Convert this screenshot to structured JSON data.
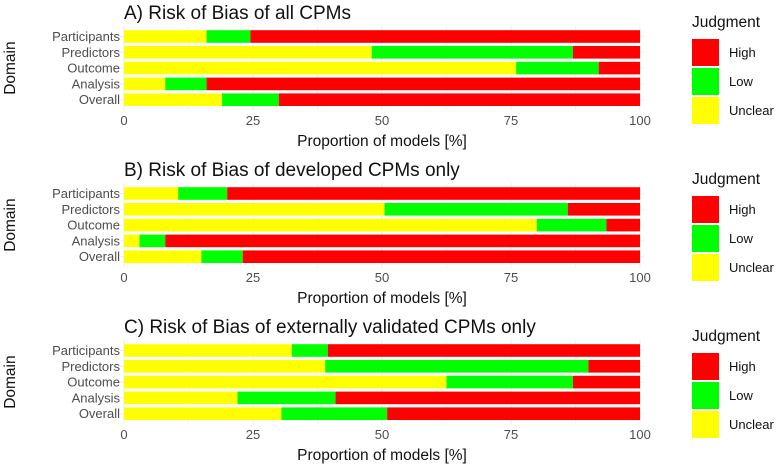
{
  "chart_data": [
    {
      "type": "bar",
      "orientation": "horizontal",
      "stacked": true,
      "title": "A) Risk of Bias of all CPMs",
      "xlabel": "Proportion of models [%]",
      "ylabel": "Domain",
      "xlim": [
        0,
        100
      ],
      "xticks": [
        "0",
        "25",
        "50",
        "75",
        "100"
      ],
      "categories": [
        "Participants",
        "Predictors",
        "Outcome",
        "Analysis",
        "Overall"
      ],
      "series": [
        {
          "name": "Unclear",
          "color": "#ffff00",
          "values": [
            16,
            48,
            76,
            8,
            19
          ]
        },
        {
          "name": "Low",
          "color": "#00ff00",
          "values": [
            8.5,
            39,
            16,
            8,
            11
          ]
        },
        {
          "name": "High",
          "color": "#ff0000",
          "values": [
            75.5,
            13,
            8,
            84,
            70
          ]
        }
      ],
      "legend": {
        "title": "Judgment",
        "entries": [
          "High",
          "Low",
          "Unclear"
        ],
        "position": "right"
      }
    },
    {
      "type": "bar",
      "orientation": "horizontal",
      "stacked": true,
      "title": "B) Risk of Bias of developed CPMs only",
      "xlabel": "Proportion of models [%]",
      "ylabel": "Domain",
      "xlim": [
        0,
        100
      ],
      "xticks": [
        "0",
        "25",
        "50",
        "75",
        "100"
      ],
      "categories": [
        "Participants",
        "Predictors",
        "Outcome",
        "Analysis",
        "Overall"
      ],
      "series": [
        {
          "name": "Unclear",
          "color": "#ffff00",
          "values": [
            10.5,
            50.5,
            80,
            3,
            15
          ]
        },
        {
          "name": "Low",
          "color": "#00ff00",
          "values": [
            9.5,
            35.5,
            13.5,
            5,
            8
          ]
        },
        {
          "name": "High",
          "color": "#ff0000",
          "values": [
            80,
            14,
            6.5,
            92,
            77
          ]
        }
      ],
      "legend": {
        "title": "Judgment",
        "entries": [
          "High",
          "Low",
          "Unclear"
        ],
        "position": "right"
      }
    },
    {
      "type": "bar",
      "orientation": "horizontal",
      "stacked": true,
      "title": "C) Risk of Bias of externally validated CPMs only",
      "xlabel": "Proportion of models [%]",
      "ylabel": "Domain",
      "xlim": [
        0,
        100
      ],
      "xticks": [
        "0",
        "25",
        "50",
        "75",
        "100"
      ],
      "categories": [
        "Participants",
        "Predictors",
        "Outcome",
        "Analysis",
        "Overall"
      ],
      "series": [
        {
          "name": "Unclear",
          "color": "#ffff00",
          "values": [
            32.5,
            39,
            62.5,
            22,
            30.5
          ]
        },
        {
          "name": "Low",
          "color": "#00ff00",
          "values": [
            7,
            51,
            24.5,
            19,
            20.5
          ]
        },
        {
          "name": "High",
          "color": "#ff0000",
          "values": [
            60.5,
            10,
            13,
            59,
            49
          ]
        }
      ],
      "legend": {
        "title": "Judgment",
        "entries": [
          "High",
          "Low",
          "Unclear"
        ],
        "position": "right"
      }
    }
  ]
}
